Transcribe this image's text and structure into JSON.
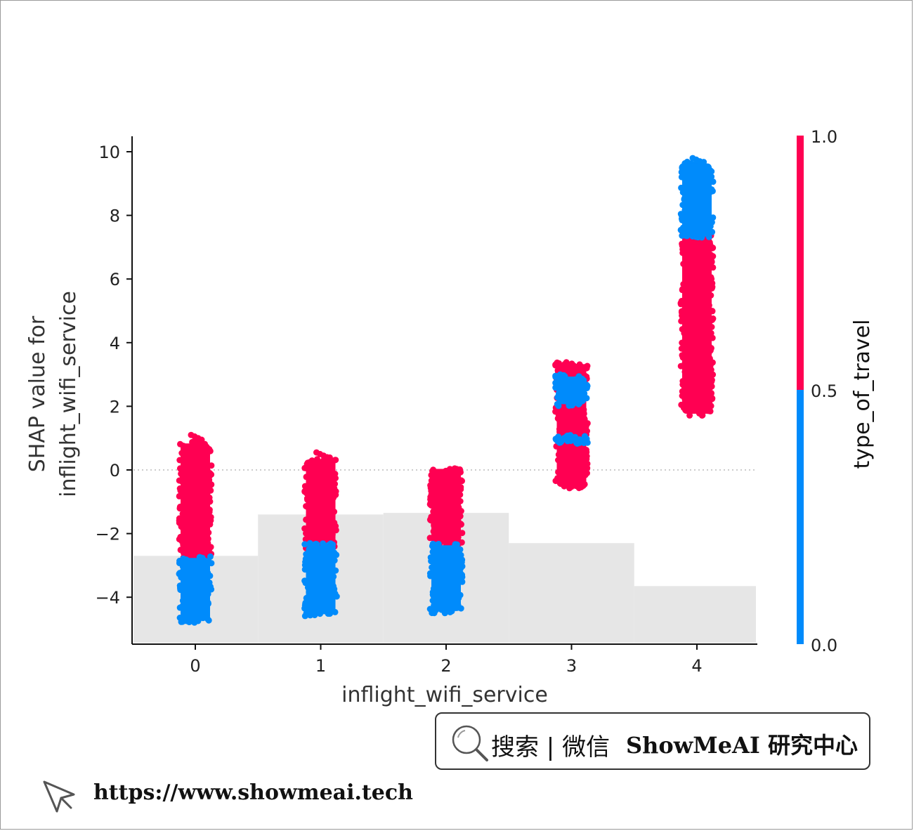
{
  "chart_data": {
    "type": "scatter",
    "xlabel": "inflight_wifi_service",
    "ylabel_lines": [
      "SHAP value for",
      "inflight_wifi_service"
    ],
    "x_ticks": [
      0,
      1,
      2,
      3,
      4
    ],
    "y_ticks": [
      10,
      8,
      6,
      4,
      2,
      0,
      -2,
      -4
    ],
    "y_tick_labels": [
      "10",
      "8",
      "6",
      "4",
      "2",
      "0",
      "−2",
      "−4"
    ],
    "xlim": [
      -0.5,
      4.5
    ],
    "ylim": [
      -5.4,
      10.5
    ],
    "zero_line": 0,
    "colorbar": {
      "label": "type_of_travel",
      "tick_labels": [
        "1.0",
        "0.5",
        "0.0"
      ],
      "high_color": "#ff0052",
      "low_color": "#008bfb"
    },
    "histogram_background": {
      "color": "#e6e6e6",
      "bins": [
        0,
        1,
        2,
        3,
        4
      ],
      "heights": [
        -2.7,
        -1.4,
        -1.35,
        -2.3,
        -3.65
      ]
    },
    "point_groups": [
      {
        "x": 0,
        "type_of_travel": 1.0,
        "y_min": -2.8,
        "y_max": 0.9,
        "peak_y": 1.1
      },
      {
        "x": 0,
        "type_of_travel": 0.0,
        "y_min": -4.8,
        "y_max": -2.7
      },
      {
        "x": 1,
        "type_of_travel": 1.0,
        "y_min": -2.5,
        "y_max": 0.4,
        "peak_y": 0.55
      },
      {
        "x": 1,
        "type_of_travel": 0.0,
        "y_min": -4.6,
        "y_max": -2.3
      },
      {
        "x": 2,
        "type_of_travel": 1.0,
        "y_min": -2.4,
        "y_max": 0.1
      },
      {
        "x": 2,
        "type_of_travel": 0.0,
        "y_min": -4.5,
        "y_max": -2.3
      },
      {
        "x": 3,
        "type_of_travel": 1.0,
        "y_min": -0.6,
        "y_max": 3.4
      },
      {
        "x": 3,
        "type_of_travel": 0.0,
        "y_min": 2.0,
        "y_max": 3.0
      },
      {
        "x": 3,
        "type_of_travel": 0.0,
        "y_min": 0.8,
        "y_max": 1.1
      },
      {
        "x": 4,
        "type_of_travel": 1.0,
        "y_min": 1.7,
        "y_max": 7.5
      },
      {
        "x": 4,
        "type_of_travel": 0.0,
        "y_min": 7.3,
        "y_max": 9.7,
        "peak_y": 9.8
      }
    ]
  },
  "watermark": {
    "search_label": "搜索 | 微信",
    "brand": "ShowMeAI 研究中心",
    "url": "https://www.showmeai.tech"
  }
}
